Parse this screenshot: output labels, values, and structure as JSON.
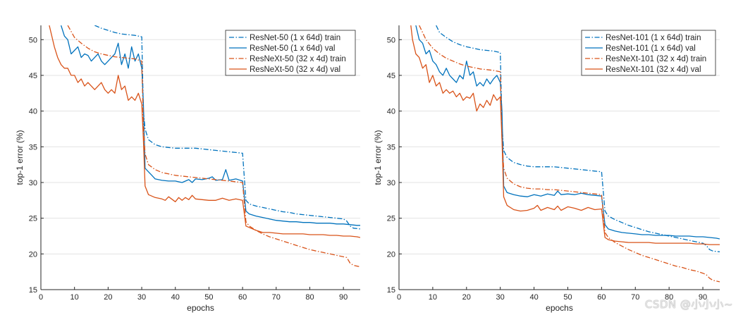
{
  "chart_data": [
    {
      "type": "line",
      "title": "",
      "xlabel": "epochs",
      "ylabel": "top-1 error (%)",
      "xlim": [
        0,
        95
      ],
      "ylim": [
        15,
        52
      ],
      "xticks": [
        0,
        10,
        20,
        30,
        40,
        50,
        60,
        70,
        80,
        90
      ],
      "yticks": [
        15,
        20,
        25,
        30,
        35,
        40,
        45,
        50
      ],
      "grid": "horizontal",
      "legend": "top-right",
      "series": [
        {
          "name": "ResNet-50 (1 x 64d) train",
          "color": "#0072BD",
          "style": "dashdot",
          "x": [
            16,
            18,
            20,
            22,
            24,
            26,
            28,
            30,
            30.5,
            31,
            32,
            34,
            36,
            38,
            40,
            42,
            44,
            46,
            48,
            50,
            52,
            54,
            56,
            58,
            60,
            61,
            62,
            64,
            66,
            68,
            70,
            72,
            74,
            76,
            78,
            80,
            82,
            84,
            86,
            88,
            90,
            91,
            92,
            93,
            95
          ],
          "y": [
            52,
            51.6,
            51.3,
            51,
            50.8,
            50.7,
            50.6,
            50.4,
            40,
            37.5,
            36,
            35.3,
            35,
            34.9,
            34.8,
            34.8,
            34.8,
            34.8,
            34.7,
            34.6,
            34.5,
            34.4,
            34.3,
            34.2,
            34.1,
            27.5,
            27,
            26.7,
            26.5,
            26.3,
            26.1,
            25.9,
            25.8,
            25.6,
            25.5,
            25.4,
            25.3,
            25.2,
            25.1,
            25,
            24.9,
            24.6,
            23.9,
            23.6,
            23.5
          ]
        },
        {
          "name": "ResNet-50 (1 x 64d) val",
          "color": "#0072BD",
          "style": "solid",
          "x": [
            6,
            7,
            8,
            9,
            10,
            11,
            12,
            13,
            14,
            15,
            16,
            17,
            18,
            19,
            20,
            21,
            22,
            23,
            24,
            25,
            26,
            27,
            28,
            29,
            30,
            30.5,
            31,
            32,
            33,
            34,
            36,
            38,
            40,
            42,
            44,
            45,
            46,
            48,
            50,
            51,
            52,
            54,
            55,
            56,
            58,
            60,
            61,
            62,
            64,
            66,
            68,
            70,
            72,
            74,
            76,
            78,
            80,
            82,
            84,
            86,
            88,
            90,
            92,
            94,
            95
          ],
          "y": [
            52,
            50.5,
            50,
            48,
            48.5,
            49,
            47.5,
            48,
            47.8,
            47,
            47.5,
            48,
            47,
            46.5,
            47,
            47.5,
            48,
            49.5,
            46.5,
            48,
            46,
            49,
            47,
            48,
            46,
            41,
            32,
            31.5,
            31,
            30.5,
            30.3,
            30.2,
            30.2,
            30,
            30.4,
            30,
            30.5,
            30.4,
            30.6,
            30.8,
            30.3,
            30.4,
            31.8,
            30.3,
            30.5,
            30.2,
            26,
            25.6,
            25.3,
            25.1,
            24.9,
            24.7,
            24.6,
            24.5,
            24.5,
            24.4,
            24.4,
            24.3,
            24.3,
            24.3,
            24.2,
            24.2,
            24.1,
            24,
            24
          ]
        },
        {
          "name": "ResNeXt-50 (32 x 4d) train",
          "color": "#D95319",
          "style": "dashdot",
          "x": [
            8,
            10,
            12,
            14,
            16,
            18,
            20,
            22,
            24,
            26,
            28,
            30,
            30.5,
            31,
            32,
            34,
            36,
            38,
            40,
            42,
            44,
            46,
            48,
            50,
            52,
            54,
            56,
            58,
            60,
            61,
            62,
            64,
            66,
            68,
            70,
            72,
            74,
            76,
            78,
            80,
            82,
            84,
            86,
            88,
            90,
            91,
            92,
            93,
            95
          ],
          "y": [
            52,
            50.3,
            49.5,
            48.8,
            48.3,
            48,
            47.8,
            47.6,
            47.5,
            47.4,
            47.3,
            47,
            38,
            34,
            32.5,
            31.8,
            31.4,
            31.2,
            31,
            30.9,
            30.8,
            30.7,
            30.6,
            30.5,
            30.4,
            30.3,
            30.2,
            30.1,
            30,
            24.5,
            23.9,
            23.3,
            22.8,
            22.4,
            22.1,
            21.8,
            21.5,
            21.2,
            20.9,
            20.6,
            20.4,
            20.2,
            20,
            19.8,
            19.6,
            19.5,
            18.7,
            18.4,
            18.2
          ]
        },
        {
          "name": "ResNeXt-50 (32 x 4d) val",
          "color": "#D95319",
          "style": "solid",
          "x": [
            2.5,
            4,
            5,
            6,
            7,
            8,
            9,
            10,
            11,
            12,
            13,
            14,
            15,
            16,
            17,
            18,
            19,
            20,
            21,
            22,
            23,
            24,
            25,
            26,
            27,
            28,
            29,
            30,
            30.5,
            31,
            32,
            34,
            36,
            37,
            38,
            40,
            41,
            42,
            43,
            44,
            45,
            46,
            48,
            50,
            52,
            54,
            56,
            58,
            60,
            61,
            62,
            64,
            66,
            68,
            70,
            72,
            74,
            76,
            78,
            80,
            82,
            84,
            86,
            88,
            90,
            92,
            94,
            95
          ],
          "y": [
            52,
            49,
            47.5,
            46.5,
            46,
            46,
            45,
            45,
            44,
            44.5,
            43.5,
            44,
            43.5,
            43,
            43.5,
            44,
            43,
            42.5,
            43,
            42.5,
            45,
            43,
            43.5,
            41.5,
            42,
            41.5,
            42.5,
            41,
            36,
            29.5,
            28.3,
            27.9,
            27.7,
            27.5,
            28,
            27.3,
            27.9,
            27.5,
            27.9,
            27.6,
            28.2,
            27.7,
            27.6,
            27.5,
            27.5,
            27.8,
            27.5,
            27.7,
            27.5,
            23.9,
            23.7,
            23.3,
            23,
            23,
            22.9,
            22.8,
            22.8,
            22.8,
            22.8,
            22.7,
            22.7,
            22.7,
            22.6,
            22.6,
            22.5,
            22.5,
            22.4,
            22.3
          ]
        }
      ]
    },
    {
      "type": "line",
      "title": "",
      "xlabel": "epochs",
      "ylabel": "top-1 error (%)",
      "xlim": [
        0,
        95
      ],
      "ylim": [
        15,
        52
      ],
      "xticks": [
        0,
        10,
        20,
        30,
        40,
        50,
        60,
        70,
        80,
        90
      ],
      "yticks": [
        15,
        20,
        25,
        30,
        35,
        40,
        45,
        50
      ],
      "grid": "horizontal",
      "legend": "top-right",
      "series": [
        {
          "name": "ResNet-101 (1 x 64d) train",
          "color": "#0072BD",
          "style": "dashdot",
          "x": [
            11,
            12,
            14,
            16,
            18,
            20,
            22,
            24,
            26,
            28,
            30,
            30.5,
            31,
            32,
            34,
            36,
            38,
            40,
            42,
            44,
            46,
            48,
            50,
            52,
            54,
            56,
            58,
            60,
            61,
            62,
            64,
            66,
            68,
            70,
            72,
            74,
            76,
            78,
            80,
            82,
            84,
            86,
            88,
            90,
            91,
            92,
            93,
            95
          ],
          "y": [
            52,
            51,
            50.3,
            49.7,
            49.3,
            49,
            48.8,
            48.6,
            48.5,
            48.4,
            48.2,
            38,
            34.5,
            33.5,
            32.8,
            32.5,
            32.3,
            32.2,
            32.2,
            32.2,
            32.2,
            32.1,
            32,
            31.9,
            31.8,
            31.7,
            31.6,
            31.5,
            26,
            25.3,
            24.8,
            24.4,
            24,
            23.7,
            23.4,
            23.1,
            22.9,
            22.7,
            22.5,
            22.3,
            22.1,
            21.9,
            21.7,
            21.5,
            21.2,
            20.6,
            20.4,
            20.3
          ]
        },
        {
          "name": "ResNet-101 (1 x 64d) val",
          "color": "#0072BD",
          "style": "solid",
          "x": [
            5,
            6,
            7,
            8,
            9,
            10,
            11,
            12,
            13,
            14,
            15,
            16,
            17,
            18,
            19,
            20,
            21,
            22,
            23,
            24,
            25,
            26,
            27,
            28,
            29,
            30,
            30.5,
            31,
            32,
            34,
            36,
            38,
            40,
            42,
            44,
            46,
            47,
            48,
            50,
            52,
            54,
            56,
            58,
            60,
            61,
            62,
            64,
            66,
            68,
            70,
            72,
            74,
            76,
            78,
            80,
            82,
            84,
            86,
            88,
            90,
            92,
            94,
            95
          ],
          "y": [
            52,
            50,
            49.5,
            48,
            48.5,
            47,
            46.5,
            45.5,
            45,
            46,
            45,
            44.5,
            44,
            45,
            44.5,
            47,
            45,
            45.5,
            43.5,
            44,
            43.5,
            44.5,
            43.8,
            44.5,
            45,
            44,
            40,
            29.5,
            28.6,
            28.3,
            28.1,
            28,
            28.3,
            28.1,
            28.4,
            28.2,
            28.8,
            28.3,
            28.4,
            28.3,
            28.5,
            28.3,
            28.2,
            28.1,
            24.1,
            23.5,
            23.2,
            23,
            22.9,
            22.8,
            22.7,
            22.7,
            22.6,
            22.6,
            22.6,
            22.5,
            22.5,
            22.5,
            22.4,
            22.4,
            22.3,
            22.2,
            22.1
          ]
        },
        {
          "name": "ResNeXt-101 (32 x 4d) train",
          "color": "#D95319",
          "style": "dashdot",
          "x": [
            6,
            8,
            10,
            12,
            14,
            16,
            18,
            20,
            22,
            24,
            26,
            28,
            30,
            30.5,
            31,
            32,
            34,
            36,
            38,
            40,
            42,
            44,
            46,
            48,
            50,
            52,
            54,
            56,
            58,
            60,
            61,
            62,
            64,
            66,
            68,
            70,
            72,
            74,
            76,
            78,
            80,
            82,
            84,
            86,
            88,
            90,
            91,
            92,
            93,
            95
          ],
          "y": [
            52,
            50,
            48.8,
            48,
            47.4,
            47,
            46.6,
            46.3,
            46.1,
            45.9,
            45.8,
            45.7,
            45.5,
            36,
            32,
            30.6,
            29.8,
            29.4,
            29.2,
            29.1,
            29.1,
            29,
            29,
            28.9,
            28.8,
            28.7,
            28.6,
            28.5,
            28.4,
            28.3,
            23,
            22.3,
            21.6,
            21.1,
            20.6,
            20.2,
            19.8,
            19.5,
            19.2,
            18.9,
            18.6,
            18.3,
            18.1,
            17.8,
            17.6,
            17.3,
            17.1,
            16.6,
            16.3,
            16.1
          ]
        },
        {
          "name": "ResNeXt-101 (32 x 4d) val",
          "color": "#D95319",
          "style": "solid",
          "x": [
            3.5,
            4,
            5,
            6,
            7,
            8,
            9,
            10,
            11,
            12,
            13,
            14,
            15,
            16,
            17,
            18,
            19,
            20,
            21,
            22,
            23,
            24,
            25,
            26,
            27,
            28,
            29,
            30,
            30.5,
            31,
            32,
            34,
            36,
            38,
            40,
            41,
            42,
            44,
            46,
            47,
            48,
            50,
            52,
            54,
            56,
            58,
            60,
            61,
            62,
            64,
            66,
            68,
            70,
            72,
            74,
            76,
            78,
            80,
            82,
            84,
            86,
            88,
            90,
            92,
            94,
            95
          ],
          "y": [
            52,
            50,
            48,
            47.5,
            46,
            46.5,
            44,
            45,
            43.5,
            44,
            42.5,
            43,
            42.5,
            42.8,
            42,
            42.5,
            41.5,
            42,
            41.8,
            42.5,
            40,
            41,
            40.5,
            41.5,
            40.8,
            42.3,
            41.5,
            42,
            36,
            28,
            26.8,
            26.2,
            26,
            26.1,
            26.4,
            26.8,
            26.1,
            26.5,
            26.2,
            26.7,
            26.1,
            26.6,
            26.4,
            26.1,
            26.5,
            26.2,
            26.3,
            22.3,
            22,
            21.8,
            21.7,
            21.6,
            21.6,
            21.6,
            21.6,
            21.5,
            21.5,
            21.5,
            21.5,
            21.5,
            21.5,
            21.4,
            21.4,
            21.3,
            21.3,
            21.3
          ]
        }
      ]
    }
  ],
  "watermark": "CSDN @小小小~"
}
